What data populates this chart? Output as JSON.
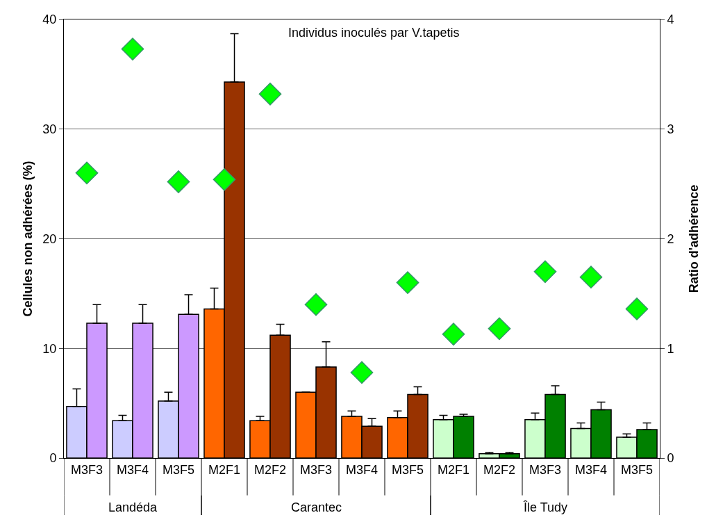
{
  "chart_data": {
    "type": "bar",
    "ylabel": "Cellules non adhérées (%)",
    "y2label": "Ratio d'adhérence",
    "categories": [
      "M3F3",
      "M3F4",
      "M3F5",
      "M2F1",
      "M2F2",
      "M3F3",
      "M3F4",
      "M3F5",
      "M2F1",
      "M2F2",
      "M3F3",
      "M3F4",
      "M3F5"
    ],
    "series": [
      {
        "colors": [
          "#ccccff",
          "#ccccff",
          "#ccccff",
          "#ff6600",
          "#ff6600",
          "#ff6600",
          "#ff6600",
          "#ff6600",
          "#ccffcc",
          "#ccffcc",
          "#ccffcc",
          "#ccffcc",
          "#ccffcc"
        ],
        "values": [
          4.7,
          3.4,
          5.2,
          13.6,
          3.4,
          6.0,
          3.8,
          3.7,
          3.5,
          0.4,
          3.5,
          2.7,
          1.9
        ],
        "errors": [
          [
            4.7,
            6.3
          ],
          [
            3.4,
            3.9
          ],
          [
            5.2,
            6.0
          ],
          [
            13.6,
            15.5
          ],
          [
            3.4,
            3.8
          ],
          null,
          [
            3.8,
            4.3
          ],
          [
            3.7,
            4.3
          ],
          [
            3.5,
            3.9
          ],
          [
            0.4,
            0.5
          ],
          [
            3.5,
            4.1
          ],
          [
            2.7,
            3.2
          ],
          [
            1.9,
            2.2
          ]
        ]
      },
      {
        "colors": [
          "#cc99ff",
          "#cc99ff",
          "#cc99ff",
          "#993300",
          "#993300",
          "#993300",
          "#993300",
          "#993300",
          "#008000",
          "#008000",
          "#008000",
          "#008000",
          "#008000"
        ],
        "values": [
          12.3,
          12.3,
          13.1,
          34.3,
          11.2,
          8.3,
          2.9,
          5.8,
          3.8,
          0.4,
          5.8,
          4.4,
          2.6
        ],
        "errors": [
          [
            12.3,
            14.0
          ],
          [
            12.3,
            14.0
          ],
          [
            13.1,
            14.9
          ],
          [
            34.3,
            38.7
          ],
          [
            11.2,
            12.2
          ],
          [
            8.3,
            10.6
          ],
          [
            2.9,
            3.6
          ],
          [
            5.8,
            6.5
          ],
          [
            3.8,
            4.0
          ],
          [
            0.4,
            0.5
          ],
          [
            5.8,
            6.6
          ],
          [
            4.4,
            5.1
          ],
          [
            2.6,
            3.2
          ]
        ]
      },
      {
        "type": "scatter",
        "axis": "y2",
        "marker": "diamond",
        "color": "#00ff00",
        "values": [
          2.6,
          3.73,
          2.52,
          2.54,
          3.32,
          1.4,
          0.78,
          1.6,
          1.13,
          1.18,
          1.7,
          1.65,
          1.36
        ]
      }
    ],
    "ylim": [
      0,
      40
    ],
    "yticks": [
      0,
      10,
      20,
      30,
      40
    ],
    "y2lim": [
      0,
      4
    ],
    "y2ticks": [
      0,
      1,
      2,
      3,
      4
    ],
    "grid": "y",
    "annotations": [
      "Individus inoculés par V.tapetis",
      "Landéda",
      "Carantec",
      "Île Tudy"
    ]
  }
}
